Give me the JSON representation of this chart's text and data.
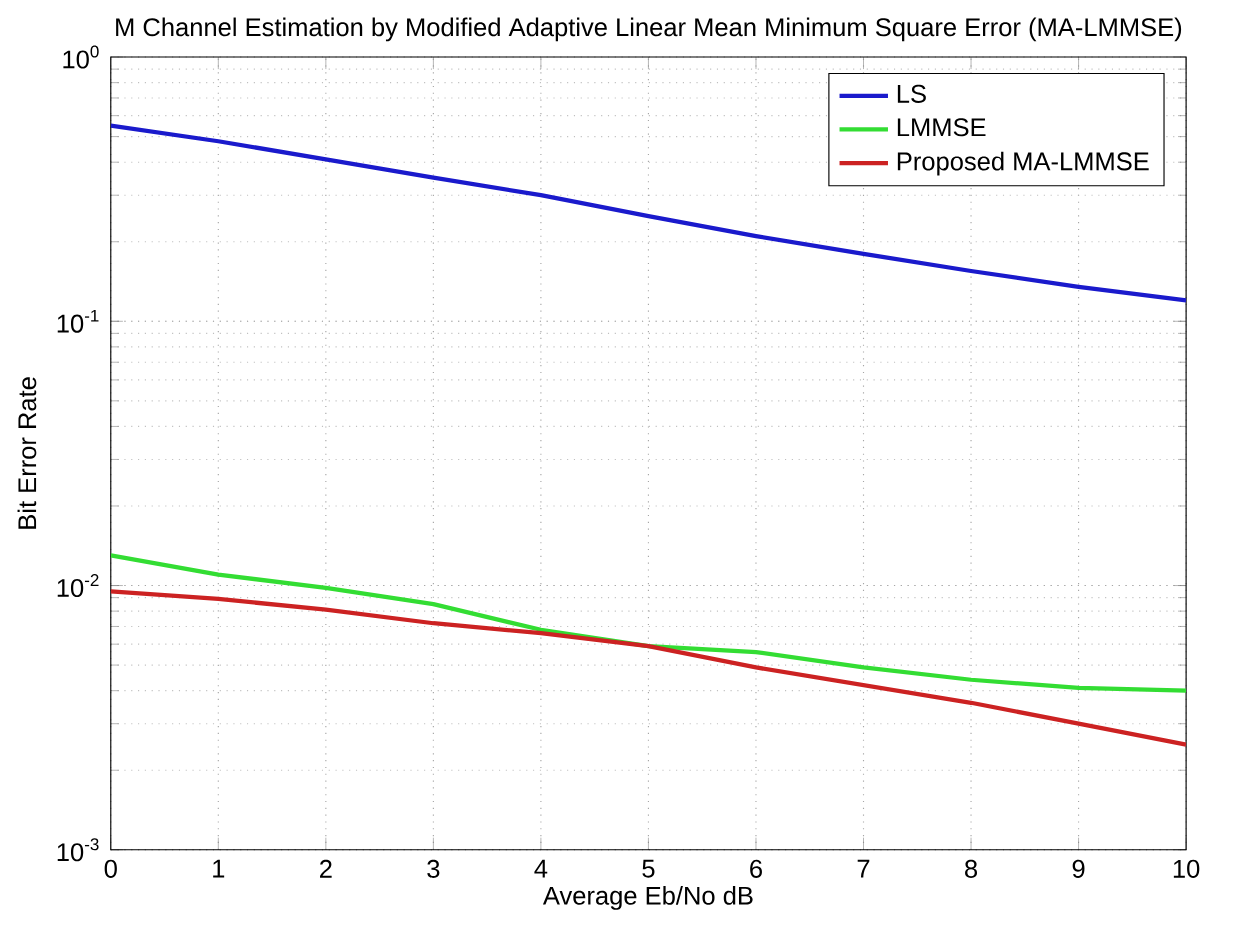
{
  "chart_data": {
    "type": "line",
    "title": "M Channel Estimation by Modified Adaptive Linear Mean Minimum Square Error (MA-LMMSE)",
    "xlabel": "Average Eb/No dB",
    "ylabel": "Bit Error Rate",
    "x": [
      0,
      1,
      2,
      3,
      4,
      5,
      6,
      7,
      8,
      9,
      10
    ],
    "series": [
      {
        "name": "LS",
        "color": "#1a1acc",
        "values": [
          0.55,
          0.48,
          0.41,
          0.35,
          0.3,
          0.25,
          0.21,
          0.18,
          0.155,
          0.135,
          0.12
        ]
      },
      {
        "name": "LMMSE",
        "color": "#33dd33",
        "values": [
          0.013,
          0.011,
          0.0098,
          0.0085,
          0.0068,
          0.0059,
          0.0056,
          0.0049,
          0.0044,
          0.0041,
          0.004
        ]
      },
      {
        "name": "Proposed MA-LMMSE",
        "color": "#cc2222",
        "values": [
          0.0095,
          0.0089,
          0.0081,
          0.0072,
          0.0066,
          0.0059,
          0.0049,
          0.0042,
          0.0036,
          0.003,
          0.0025
        ]
      }
    ],
    "log": "y",
    "grid": true,
    "legend": "top right",
    "marker": "none",
    "line_style": "solid",
    "xlim": [
      0,
      10
    ],
    "xticks": [
      0,
      1,
      2,
      3,
      4,
      5,
      6,
      7,
      8,
      9,
      10
    ],
    "ylim": [
      0.001,
      1
    ],
    "yticks": [
      {
        "value": 0.001,
        "label": "10$^{-3}$"
      },
      {
        "value": 0.01,
        "label": "10$^{-2}$"
      },
      {
        "value": 0.1,
        "label": "10$^{-1}$"
      },
      {
        "value": 1,
        "label": "10$^{0}$"
      }
    ]
  }
}
